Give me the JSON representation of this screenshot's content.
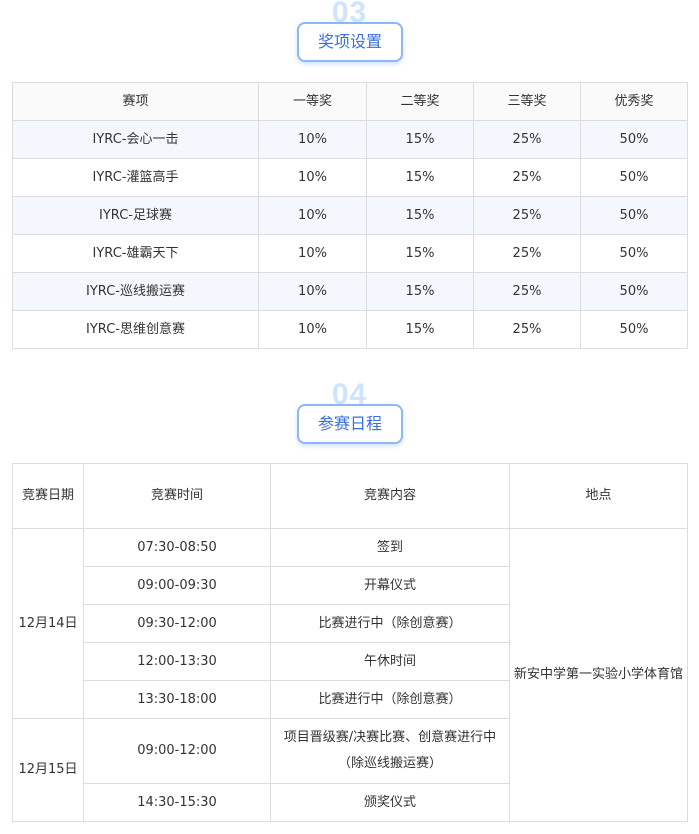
{
  "awards": {
    "number": "03",
    "title": "奖项设置",
    "headers": [
      "赛项",
      "一等奖",
      "二等奖",
      "三等奖",
      "优秀奖"
    ],
    "rows": [
      [
        "IYRC-会心一击",
        "10%",
        "15%",
        "25%",
        "50%"
      ],
      [
        "IYRC-灌篮高手",
        "10%",
        "15%",
        "25%",
        "50%"
      ],
      [
        "IYRC-足球赛",
        "10%",
        "15%",
        "25%",
        "50%"
      ],
      [
        "IYRC-雄霸天下",
        "10%",
        "15%",
        "25%",
        "50%"
      ],
      [
        "IYRC-巡线搬运赛",
        "10%",
        "15%",
        "25%",
        "50%"
      ],
      [
        "IYRC-思维创意赛",
        "10%",
        "15%",
        "25%",
        "50%"
      ]
    ]
  },
  "schedule": {
    "number": "04",
    "title": "参赛日程",
    "headers": [
      "竞赛日期",
      "竞赛时间",
      "竞赛内容",
      "地点"
    ],
    "location": "新安中学第一实验小学体育馆",
    "days": [
      {
        "date": "12月14日",
        "items": [
          {
            "time": "07:30-08:50",
            "content": "签到"
          },
          {
            "time": "09:00-09:30",
            "content": "开幕仪式"
          },
          {
            "time": "09:30-12:00",
            "content": "比赛进行中（除创意赛）"
          },
          {
            "time": "12:00-13:30",
            "content": "午休时间"
          },
          {
            "time": "13:30-18:00",
            "content": "比赛进行中（除创意赛）"
          }
        ]
      },
      {
        "date": "12月15日",
        "items": [
          {
            "time": "09:00-12:00",
            "content": "项目晋级赛/决赛比赛、创意赛进行中（除巡线搬运赛）"
          },
          {
            "time": "14:30-15:30",
            "content": "颁奖仪式"
          }
        ]
      }
    ]
  }
}
